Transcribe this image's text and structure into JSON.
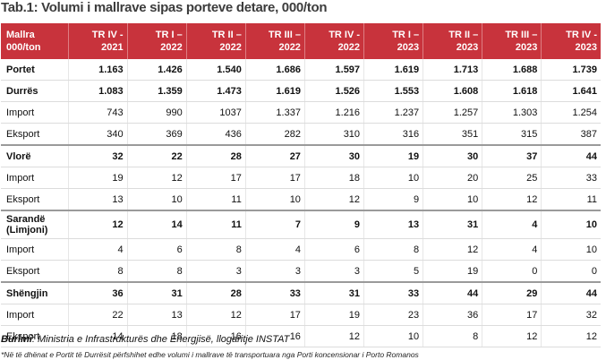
{
  "title": "Tab.1: Volumi i mallrave sipas porteve detare, 000/ton",
  "header": {
    "first_line1": "Mallra",
    "first_line2": "000/ton",
    "periods": [
      {
        "line1": "TR IV -",
        "line2": "2021"
      },
      {
        "line1": "TR I –",
        "line2": "2022"
      },
      {
        "line1": "TR II –",
        "line2": "2022"
      },
      {
        "line1": "TR III –",
        "line2": "2022"
      },
      {
        "line1": "TR IV -",
        "line2": "2022"
      },
      {
        "line1": "TR I –",
        "line2": "2023"
      },
      {
        "line1": "TR II –",
        "line2": "2023"
      },
      {
        "line1": "TR III –",
        "line2": "2023"
      },
      {
        "line1": "TR IV -",
        "line2": "2023"
      }
    ]
  },
  "rows": [
    {
      "label": "Portet",
      "values": [
        "1.163",
        "1.426",
        "1.540",
        "1.686",
        "1.597",
        "1.619",
        "1.713",
        "1.688",
        "1.739"
      ]
    },
    {
      "label": "Durrës",
      "values": [
        "1.083",
        "1.359",
        "1.473",
        "1.619",
        "1.526",
        "1.553",
        "1.608",
        "1.618",
        "1.641"
      ]
    },
    {
      "label": "Import",
      "values": [
        "743",
        "990",
        "1037",
        "1.337",
        "1.216",
        "1.237",
        "1.257",
        "1.303",
        "1.254"
      ]
    },
    {
      "label": "Eksport",
      "values": [
        "340",
        "369",
        "436",
        "282",
        "310",
        "316",
        "351",
        "315",
        "387"
      ]
    },
    {
      "label": "Vlorë",
      "values": [
        "32",
        "22",
        "28",
        "27",
        "30",
        "19",
        "30",
        "37",
        "44"
      ]
    },
    {
      "label": "Import",
      "values": [
        "19",
        "12",
        "17",
        "17",
        "18",
        "10",
        "20",
        "25",
        "33"
      ]
    },
    {
      "label": "Eksport",
      "values": [
        "13",
        "10",
        "11",
        "10",
        "12",
        "9",
        "10",
        "12",
        "11"
      ]
    },
    {
      "label": "Sarandë (Limjoni)",
      "values": [
        "12",
        "14",
        "11",
        "7",
        "9",
        "13",
        "31",
        "4",
        "10"
      ]
    },
    {
      "label": "Import",
      "values": [
        "4",
        "6",
        "8",
        "4",
        "6",
        "8",
        "12",
        "4",
        "10"
      ]
    },
    {
      "label": "Eksport",
      "values": [
        "8",
        "8",
        "3",
        "3",
        "3",
        "5",
        "19",
        "0",
        "0"
      ]
    },
    {
      "label": "Shëngjin",
      "values": [
        "36",
        "31",
        "28",
        "33",
        "31",
        "33",
        "44",
        "29",
        "44"
      ]
    },
    {
      "label": "Import",
      "values": [
        "22",
        "13",
        "12",
        "17",
        "19",
        "23",
        "36",
        "17",
        "32"
      ]
    },
    {
      "label": "Eksport",
      "values": [
        "14",
        "18",
        "16",
        "16",
        "12",
        "10",
        "8",
        "12",
        "12"
      ]
    }
  ],
  "source": {
    "label": "Burimi",
    "text": ": Ministria e Infrastrukturës dhe Energjisë, llogaritje INSTAT"
  },
  "note": "*Në të dhënat e Portit të Durrësit përfshihet edhe volumi i mallrave të transportuara nga Porti koncensionar i Porto Romanos",
  "colors": {
    "header_bg": "#c8333c",
    "header_text": "#ffffff"
  }
}
